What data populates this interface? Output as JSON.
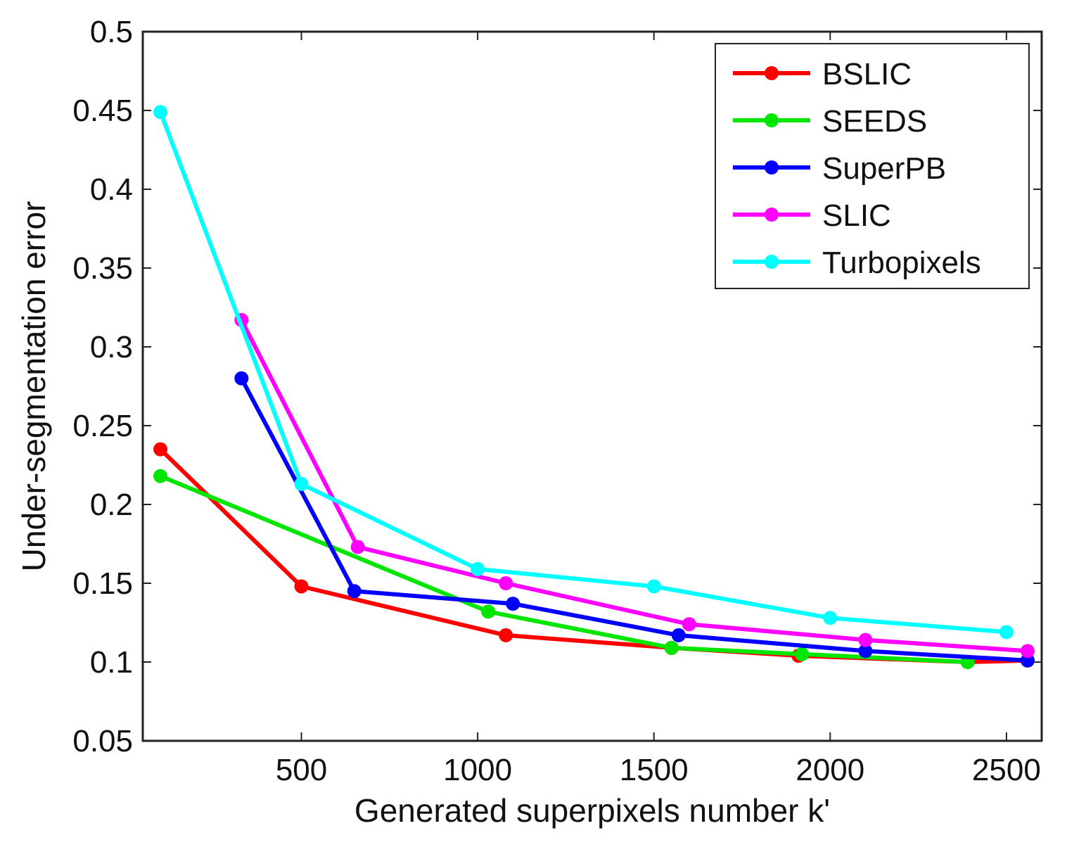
{
  "chart_data": {
    "type": "line",
    "title": "",
    "xlabel": "Generated superpixels number k'",
    "ylabel": "Under-segmentation error",
    "xlim": [
      50,
      2600
    ],
    "ylim": [
      0.05,
      0.5
    ],
    "x_ticks": [
      500,
      1000,
      1500,
      2000,
      2500
    ],
    "x_tick_labels": [
      "500",
      "1000",
      "1500",
      "2000",
      "2500"
    ],
    "y_ticks": [
      0.05,
      0.1,
      0.15,
      0.2,
      0.25,
      0.3,
      0.35,
      0.4,
      0.45,
      0.5
    ],
    "y_tick_labels": [
      "0.05",
      "0.1",
      "0.15",
      "0.2",
      "0.25",
      "0.3",
      "0.35",
      "0.4",
      "0.45",
      "0.5"
    ],
    "grid": false,
    "legend_position": "top-right",
    "series": [
      {
        "name": "BSLIC",
        "color": "#ff0000",
        "x": [
          100,
          500,
          1080,
          1550,
          1910,
          2390,
          2560
        ],
        "y": [
          0.235,
          0.148,
          0.117,
          0.109,
          0.104,
          0.1,
          0.101
        ]
      },
      {
        "name": "SEEDS",
        "color": "#00e600",
        "x": [
          100,
          1030,
          1550,
          1920,
          2390
        ],
        "y": [
          0.218,
          0.132,
          0.109,
          0.105,
          0.1
        ]
      },
      {
        "name": "SuperPB",
        "color": "#0000ff",
        "x": [
          330,
          650,
          1100,
          1570,
          2100,
          2560
        ],
        "y": [
          0.28,
          0.145,
          0.137,
          0.117,
          0.107,
          0.101
        ]
      },
      {
        "name": "SLIC",
        "color": "#ff00ff",
        "x": [
          330,
          660,
          1080,
          1600,
          2100,
          2560
        ],
        "y": [
          0.317,
          0.173,
          0.15,
          0.124,
          0.114,
          0.107
        ]
      },
      {
        "name": "Turbopixels",
        "color": "#00ffff",
        "x": [
          100,
          500,
          1000,
          1500,
          2000,
          2500
        ],
        "y": [
          0.449,
          0.213,
          0.159,
          0.148,
          0.128,
          0.119
        ]
      }
    ]
  }
}
